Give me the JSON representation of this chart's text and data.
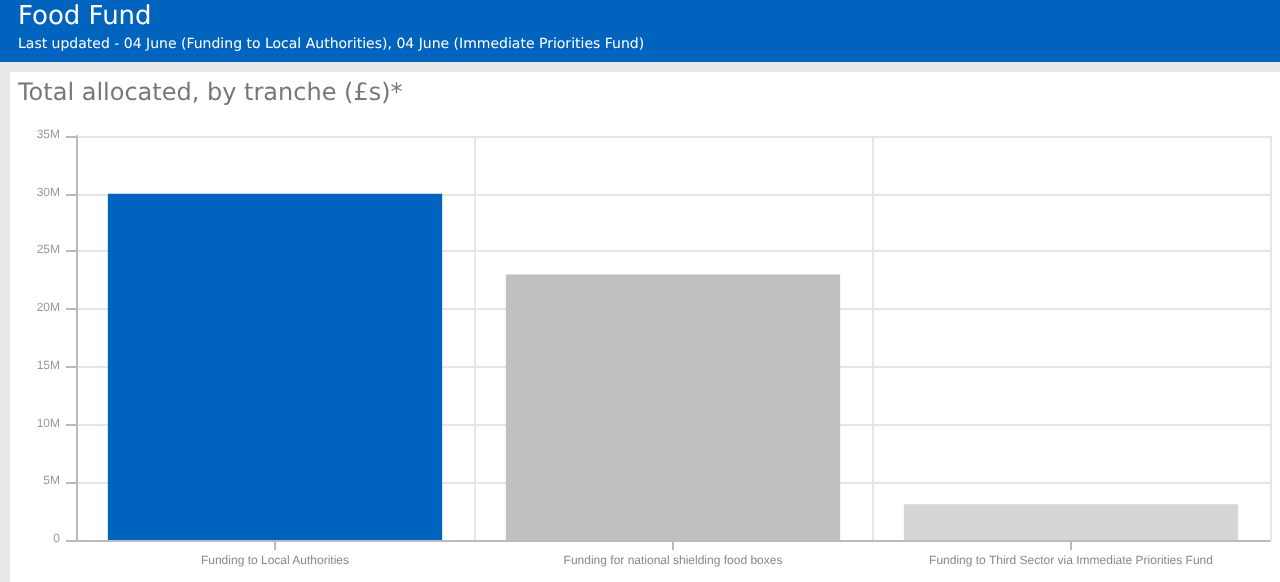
{
  "chart_data": {
    "type": "bar",
    "title": "Food Fund",
    "subtitle": "Last updated - 04 June (Funding to Local Authorities), 04 June (Immediate Priorities Fund)",
    "annotations": [
      "Total allocated, by tranche (£s)*"
    ],
    "categories": [
      "Funding to Local Authorities",
      "Funding for national shielding food boxes",
      "Funding to Third Sector via Immediate Priorities Fund"
    ],
    "values": [
      30000000,
      23000000,
      3100000
    ],
    "colors": [
      "#0063be",
      "#c0c0c0",
      "#d6d6d6"
    ],
    "ylim": [
      0,
      35000000
    ],
    "yticks": [
      0,
      {
        "value": 5000000,
        "label": "5M"
      },
      {
        "value": 10000000,
        "label": "10M"
      },
      {
        "value": 15000000,
        "label": "15M"
      },
      {
        "value": 20000000,
        "label": "20M"
      },
      {
        "value": 25000000,
        "label": "25M"
      },
      {
        "value": 30000000,
        "label": "30M"
      },
      {
        "value": 35000000,
        "label": "35M"
      }
    ],
    "grid": true
  }
}
